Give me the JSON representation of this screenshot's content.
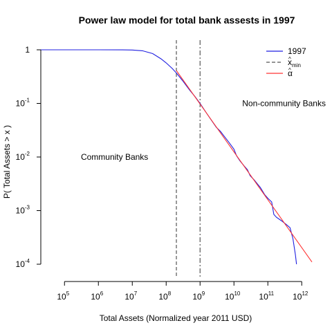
{
  "chart_data": {
    "type": "line",
    "title": "Power law model for total bank assests in 1997",
    "xlabel": "Total Assets (Normalized year 2011 USD)",
    "ylabel": "P( Total Assets > x )",
    "x_scale": "log",
    "y_scale": "log",
    "xlim": [
      20000,
      2000000000000
    ],
    "ylim": [
      0.0001,
      1
    ],
    "grid": false,
    "legend_position": "top-right",
    "x_ticks": [
      {
        "base": "10",
        "exp": "5",
        "value": 100000
      },
      {
        "base": "10",
        "exp": "6",
        "value": 1000000
      },
      {
        "base": "10",
        "exp": "7",
        "value": 10000000
      },
      {
        "base": "10",
        "exp": "8",
        "value": 100000000
      },
      {
        "base": "10",
        "exp": "9",
        "value": 1000000000
      },
      {
        "base": "10",
        "exp": "10",
        "value": 10000000000
      },
      {
        "base": "10",
        "exp": "11",
        "value": 100000000000
      },
      {
        "base": "10",
        "exp": "12",
        "value": 1000000000000
      }
    ],
    "y_ticks": [
      {
        "base": "1",
        "exp": "",
        "value": 1
      },
      {
        "base": "10",
        "exp": "-1",
        "value": 0.1
      },
      {
        "base": "10",
        "exp": "-2",
        "value": 0.01
      },
      {
        "base": "10",
        "exp": "-3",
        "value": 0.001
      },
      {
        "base": "10",
        "exp": "-4",
        "value": 0.0001
      }
    ],
    "series": [
      {
        "name": "1997",
        "color": "#1f1fe0",
        "style": "solid",
        "points": [
          [
            20000,
            1
          ],
          [
            1000000,
            1
          ],
          [
            5000000,
            0.998
          ],
          [
            10000000,
            0.99
          ],
          [
            20000000,
            0.96
          ],
          [
            40000000,
            0.85
          ],
          [
            70000000,
            0.68
          ],
          [
            100000000,
            0.57
          ],
          [
            150000000,
            0.45
          ],
          [
            200000000,
            0.37
          ],
          [
            300000000,
            0.27
          ],
          [
            500000000,
            0.175
          ],
          [
            700000000,
            0.135
          ],
          [
            1000000000,
            0.1
          ],
          [
            1500000000,
            0.068
          ],
          [
            2000000000,
            0.052
          ],
          [
            3000000000,
            0.036
          ],
          [
            4000000000,
            0.03
          ],
          [
            5000000000,
            0.025
          ],
          [
            7000000000,
            0.019
          ],
          [
            10000000000,
            0.014
          ],
          [
            12000000000,
            0.0105
          ],
          [
            15000000000,
            0.0085
          ],
          [
            20000000000,
            0.0068
          ],
          [
            25000000000,
            0.0058
          ],
          [
            30000000000,
            0.0045
          ],
          [
            40000000000,
            0.0037
          ],
          [
            50000000000,
            0.0031
          ],
          [
            60000000000,
            0.0027
          ],
          [
            80000000000,
            0.002
          ],
          [
            100000000000,
            0.0017
          ],
          [
            130000000000,
            0.00145
          ],
          [
            150000000000,
            0.00085
          ],
          [
            180000000000,
            0.00075
          ],
          [
            250000000000,
            0.00065
          ],
          [
            350000000000,
            0.00055
          ],
          [
            450000000000,
            0.00048
          ],
          [
            550000000000,
            0.0003
          ],
          [
            650000000000,
            0.00015
          ],
          [
            700000000000,
            0.0001
          ]
        ]
      },
      {
        "name": "x_min",
        "legend_text": "x",
        "legend_hat": "^",
        "legend_sub": "min",
        "color": "#555555",
        "style": "dashed",
        "x": 200000000
      },
      {
        "name": "alpha",
        "legend_text": "α",
        "legend_hat": "^",
        "color": "#ff3333",
        "style": "solid",
        "points": [
          [
            200000000,
            0.41
          ],
          [
            2000000000000,
            0.00011
          ]
        ]
      }
    ],
    "extra_vline": {
      "x": 1000000000,
      "color": "#555555",
      "style": "dashdot"
    },
    "annotations": [
      {
        "text": "Community Banks",
        "x": 3000000,
        "y": 0.01
      },
      {
        "text": "Non-community Banks",
        "x": 300000000000,
        "y": 0.1
      }
    ]
  }
}
